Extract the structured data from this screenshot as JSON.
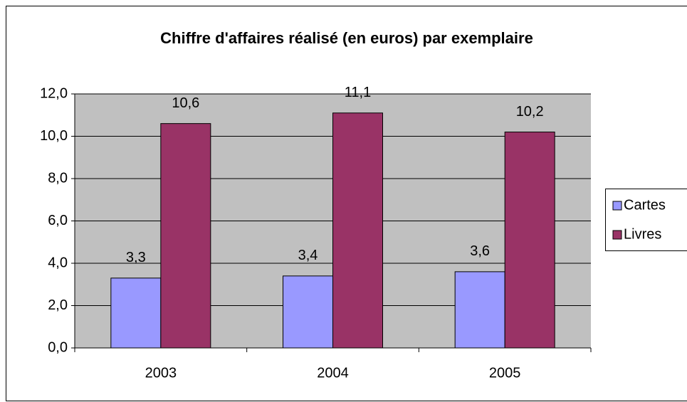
{
  "chart_data": {
    "type": "bar",
    "title": "Chiffre d'affaires réalisé (en euros) par exemplaire",
    "categories": [
      "2003",
      "2004",
      "2005"
    ],
    "series": [
      {
        "name": "Cartes",
        "color": "#9999ff",
        "values": [
          3.3,
          3.4,
          3.6
        ],
        "value_labels": [
          "3,3",
          "3,4",
          "3,6"
        ]
      },
      {
        "name": "Livres",
        "color": "#993366",
        "values": [
          10.6,
          11.1,
          10.2
        ],
        "value_labels": [
          "10,6",
          "11,1",
          "10,2"
        ]
      }
    ],
    "ylim": [
      0,
      12
    ],
    "yticks": [
      {
        "value": 0,
        "label": "0,0"
      },
      {
        "value": 2,
        "label": "2,0"
      },
      {
        "value": 4,
        "label": "4,0"
      },
      {
        "value": 6,
        "label": "6,0"
      },
      {
        "value": 8,
        "label": "8,0"
      },
      {
        "value": 10,
        "label": "10,0"
      },
      {
        "value": 12,
        "label": "12,0"
      }
    ],
    "grid": true,
    "legend": "right"
  }
}
